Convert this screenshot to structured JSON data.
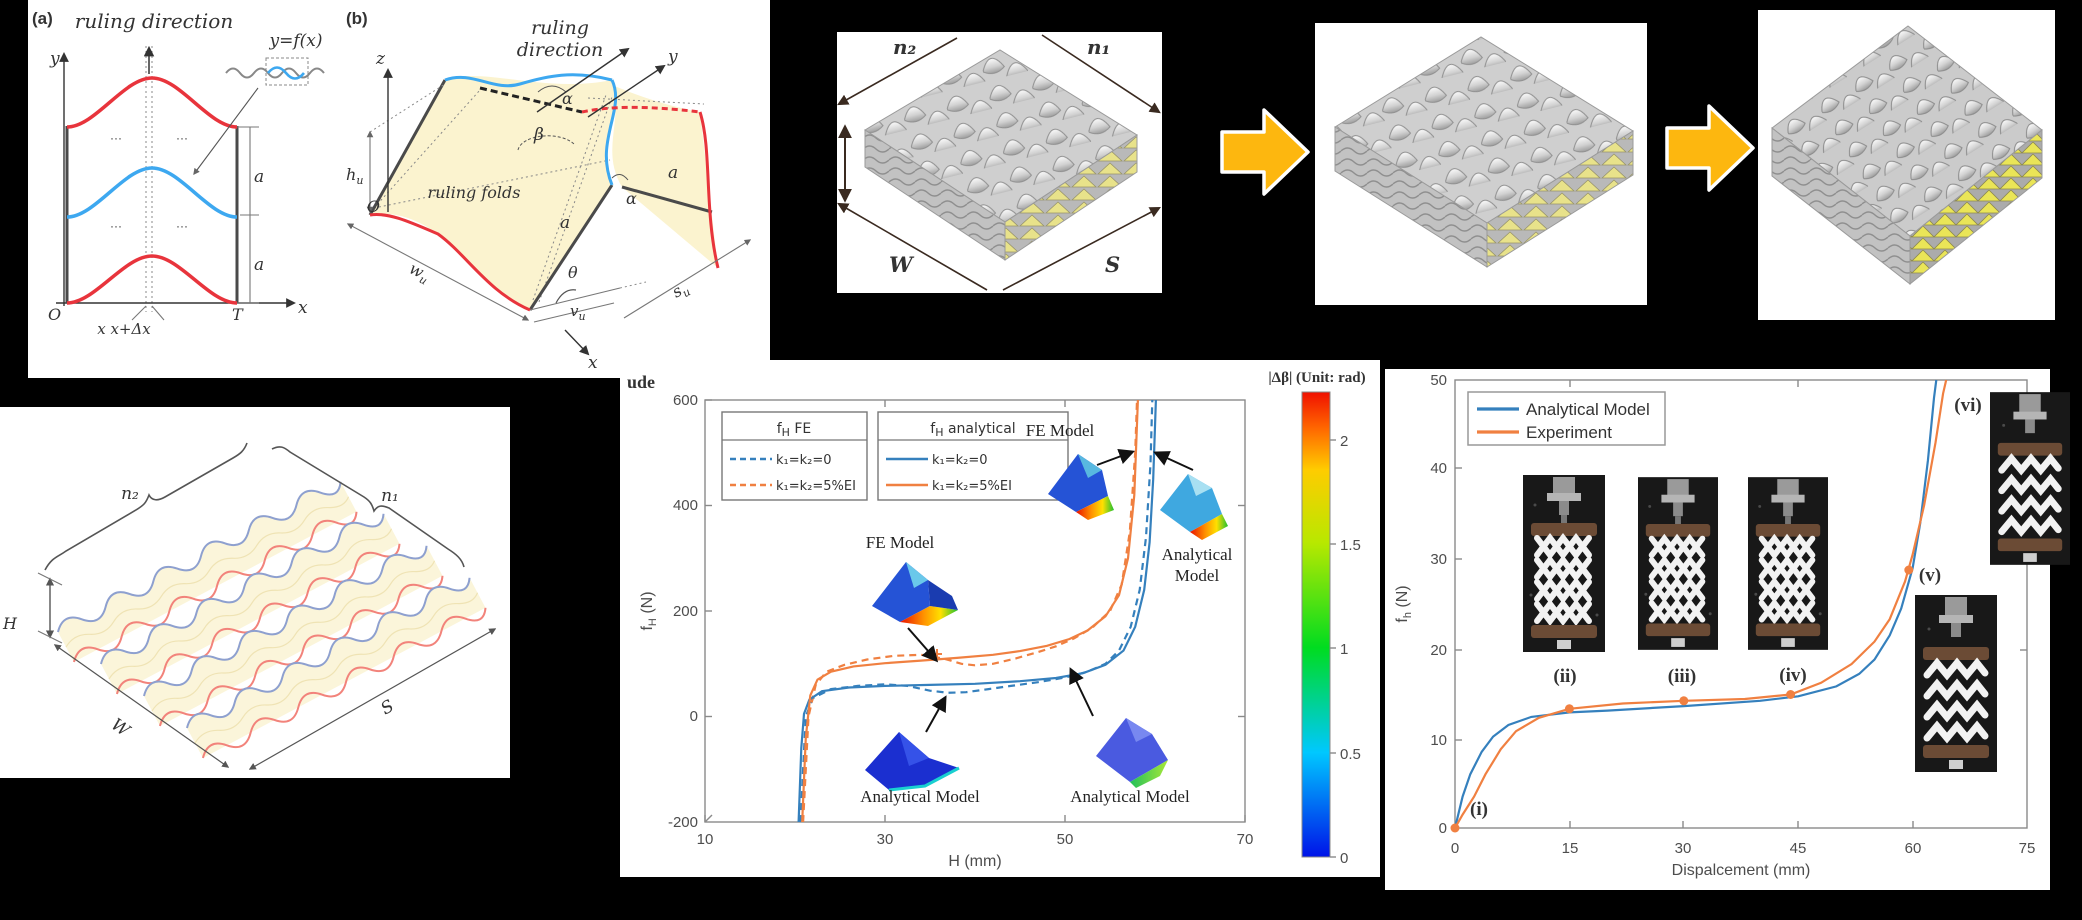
{
  "colors": {
    "background": "#000000",
    "panel": "#ffffff",
    "cream_surface": "#fbf3cf",
    "red_curve": "#e8343c",
    "sky_blue_curve": "#3da8f0",
    "schematic_blue": "#8ea0cf",
    "schematic_red": "#f2837b",
    "plot_blue": "#3580bd",
    "plot_orange": "#f08041",
    "yellow_arrow": "#fdb70f",
    "render_gray": "#cfcfcf",
    "render_yellow": "#e8e28a",
    "photo_plate_brown": "#6b4b35"
  },
  "panel_ab": {
    "tag_a": "(a)",
    "tag_b": "(b)",
    "a": {
      "title": "ruling direction",
      "inset_label": "y=f(x)",
      "axis_y": "y",
      "axis_x": "x",
      "origin": "O",
      "period": "T",
      "x_marks": "x x+Δx",
      "dim": "a",
      "dots": "···"
    },
    "b": {
      "title_line1": "ruling",
      "title_line2": "direction",
      "axis_z": "z",
      "axis_y": "y",
      "axis_x": "x",
      "origin": "O",
      "alpha": "α",
      "beta": "β",
      "theta": "θ",
      "ruling_folds": "ruling folds",
      "edge_a": "a",
      "h": "h",
      "w": "w",
      "v": "v",
      "s": "s",
      "sub_u": "u"
    }
  },
  "renders": {
    "n2": "n₂",
    "n1": "n₁",
    "w": "W",
    "s": "S"
  },
  "schematic": {
    "n2": "n₂",
    "n1": "n₁",
    "h": "H",
    "w": "W",
    "s": "S"
  },
  "fH_plot": {
    "stray": "ude",
    "ylabel": {
      "f": "f",
      "sub": "H",
      "unit": " (N)"
    },
    "xlabel": "H (mm)",
    "legend_fe": {
      "header_f": "f",
      "header_sub": "H",
      "header_rest": " FE",
      "row1": "k₁=k₂=0",
      "row2": "k₁=k₂=5%EI"
    },
    "legend_an": {
      "header_f": "f",
      "header_sub": "H",
      "header_rest": " analytical",
      "row1": "k₁=k₂=0",
      "row2": "k₁=k₂=5%EI"
    },
    "ann_fe": "FE Model",
    "ann_an": "Analytical Model",
    "ann_an_l1": "Analytical",
    "ann_an_l2": "Model",
    "colorbar_title": "|Δβ| (Unit: rad)"
  },
  "fh_plot": {
    "ylabel": {
      "f": "f",
      "sub": "h",
      "unit": " (N)"
    },
    "xlabel": "Dispalcement (mm)",
    "legend": [
      "Analytical Model",
      "Experiment"
    ],
    "stages": [
      "(i)",
      "(ii)",
      "(iii)",
      "(iv)",
      "(v)",
      "(vi)"
    ]
  },
  "chart_data": [
    {
      "type": "line",
      "title": "",
      "xlabel": "H (mm)",
      "ylabel": "f_H (N)",
      "xlim": [
        10,
        70
      ],
      "ylim": [
        -200,
        600
      ],
      "xticks": [
        10,
        30,
        50,
        70
      ],
      "yticks": [
        600,
        400,
        200,
        0,
        -200
      ],
      "grid": false,
      "legend_position": "top",
      "colorbar": {
        "label": "|Δβ| (Unit: rad)",
        "ticks": [
          2,
          1.5,
          1,
          0.5,
          0
        ],
        "range": [
          0,
          2.2
        ],
        "colormap": "jet"
      },
      "pixmap": {
        "x0": 85,
        "xv0": 10,
        "xs": 9,
        "y0": 462,
        "yv0": -200,
        "ys": 0.5275
      },
      "series": [
        {
          "name": "fe_k0",
          "label": "f_H FE  k1=k2=0",
          "color": "#3580bd",
          "style": "dashed",
          "points": [
            [
              20.6,
              -200
            ],
            [
              21.2,
              0
            ],
            [
              22,
              35
            ],
            [
              24,
              52
            ],
            [
              27,
              58
            ],
            [
              30,
              61
            ],
            [
              32.5,
              58
            ],
            [
              35,
              49
            ],
            [
              37,
              45
            ],
            [
              39,
              46
            ],
            [
              41.5,
              52
            ],
            [
              44,
              58
            ],
            [
              47,
              65
            ],
            [
              50,
              74
            ],
            [
              52.5,
              85
            ],
            [
              54.5,
              100
            ],
            [
              56,
              125
            ],
            [
              57.3,
              170
            ],
            [
              58.3,
              240
            ],
            [
              59,
              340
            ],
            [
              59.5,
              480
            ],
            [
              59.7,
              600
            ]
          ]
        },
        {
          "name": "fe_k5",
          "label": "f_H FE  k1=k2=5%EI",
          "color": "#f08041",
          "style": "dashed",
          "points": [
            [
              20.9,
              -200
            ],
            [
              21.5,
              0
            ],
            [
              22.3,
              60
            ],
            [
              23.5,
              85
            ],
            [
              25.5,
              98
            ],
            [
              28,
              108
            ],
            [
              31,
              115
            ],
            [
              34,
              117
            ],
            [
              36.5,
              110
            ],
            [
              38.5,
              100
            ],
            [
              40,
              97
            ],
            [
              42,
              100
            ],
            [
              44.5,
              110
            ],
            [
              47,
              122
            ],
            [
              49,
              133
            ],
            [
              51,
              148
            ],
            [
              53,
              168
            ],
            [
              55,
              200
            ],
            [
              56.3,
              250
            ],
            [
              57.2,
              350
            ],
            [
              57.8,
              500
            ],
            [
              58,
              600
            ]
          ]
        },
        {
          "name": "an_k0",
          "label": "f_H analytical  k1=k2=0",
          "color": "#3580bd",
          "style": "solid",
          "points": [
            [
              20.4,
              -200
            ],
            [
              20.7,
              -60
            ],
            [
              21,
              5
            ],
            [
              21.6,
              32
            ],
            [
              23,
              48
            ],
            [
              26,
              55
            ],
            [
              30,
              58
            ],
            [
              35,
              60
            ],
            [
              40,
              62
            ],
            [
              45,
              67
            ],
            [
              49,
              73
            ],
            [
              52,
              82
            ],
            [
              54.5,
              98
            ],
            [
              56.5,
              125
            ],
            [
              57.8,
              170
            ],
            [
              58.8,
              240
            ],
            [
              59.4,
              330
            ],
            [
              59.8,
              450
            ],
            [
              60.1,
              600
            ]
          ]
        },
        {
          "name": "an_k5",
          "label": "f_H analytical  k1=k2=5%EI",
          "color": "#f08041",
          "style": "solid",
          "points": [
            [
              20.8,
              -200
            ],
            [
              21.2,
              -40
            ],
            [
              21.7,
              40
            ],
            [
              22.5,
              70
            ],
            [
              24,
              85
            ],
            [
              26.5,
              95
            ],
            [
              30,
              101
            ],
            [
              34,
              106
            ],
            [
              38,
              111
            ],
            [
              42,
              117
            ],
            [
              45,
              124
            ],
            [
              48,
              134
            ],
            [
              50.5,
              147
            ],
            [
              52.5,
              163
            ],
            [
              54.5,
              190
            ],
            [
              56,
              230
            ],
            [
              57,
              300
            ],
            [
              57.7,
              420
            ],
            [
              58.1,
              600
            ]
          ]
        }
      ]
    },
    {
      "type": "line",
      "title": "",
      "xlabel": "Dispalcement (mm)",
      "ylabel": "f_h (N)",
      "xlim": [
        0,
        75
      ],
      "ylim": [
        0,
        50
      ],
      "xticks": [
        0,
        15,
        30,
        45,
        60,
        75
      ],
      "yticks": [
        50,
        40,
        30,
        20,
        10,
        0
      ],
      "grid": false,
      "legend_position": "upper-left",
      "pixmap": {
        "x0": 70,
        "xv0": 0,
        "xs": 7.627,
        "y0": 459,
        "yv0": 0,
        "ys": 8.96
      },
      "series": [
        {
          "name": "analytical",
          "label": "Analytical Model",
          "color": "#3580bd",
          "style": "solid",
          "points": [
            [
              0,
              0
            ],
            [
              1,
              3.5
            ],
            [
              2,
              6
            ],
            [
              3.5,
              8.5
            ],
            [
              5,
              10.2
            ],
            [
              7,
              11.5
            ],
            [
              10,
              12.4
            ],
            [
              15,
              12.9
            ],
            [
              20,
              13.1
            ],
            [
              30,
              13.6
            ],
            [
              40,
              14.2
            ],
            [
              45,
              14.7
            ],
            [
              50,
              15.8
            ],
            [
              53,
              17.2
            ],
            [
              55,
              18.8
            ],
            [
              57,
              21.5
            ],
            [
              58.5,
              24.5
            ],
            [
              60,
              29
            ],
            [
              61,
              34
            ],
            [
              62,
              41
            ],
            [
              62.8,
              48
            ],
            [
              63.1,
              50
            ]
          ]
        },
        {
          "name": "experiment",
          "label": "Experiment",
          "color": "#f08041",
          "style": "solid",
          "points": [
            [
              0,
              0
            ],
            [
              1,
              1.5
            ],
            [
              2.5,
              3.5
            ],
            [
              4,
              6
            ],
            [
              6,
              8.8
            ],
            [
              8,
              10.8
            ],
            [
              11,
              12.3
            ],
            [
              15,
              13.3
            ],
            [
              22,
              13.9
            ],
            [
              30,
              14.2
            ],
            [
              38,
              14.4
            ],
            [
              44,
              14.9
            ],
            [
              48,
              16.2
            ],
            [
              52,
              18.3
            ],
            [
              55,
              20.8
            ],
            [
              57,
              23.3
            ],
            [
              59,
              27.5
            ],
            [
              60,
              30.5
            ],
            [
              61.5,
              36
            ],
            [
              63,
              43
            ],
            [
              64,
              48.5
            ],
            [
              64.4,
              50
            ]
          ]
        },
        {
          "name": "exp_markers",
          "label": "experiment stage points",
          "color": "#f08041",
          "style": "markers",
          "points": [
            [
              0,
              0
            ],
            [
              15,
              13.3
            ],
            [
              30,
              14.2
            ],
            [
              44,
              14.9
            ],
            [
              59.5,
              28.8
            ]
          ]
        }
      ]
    }
  ]
}
